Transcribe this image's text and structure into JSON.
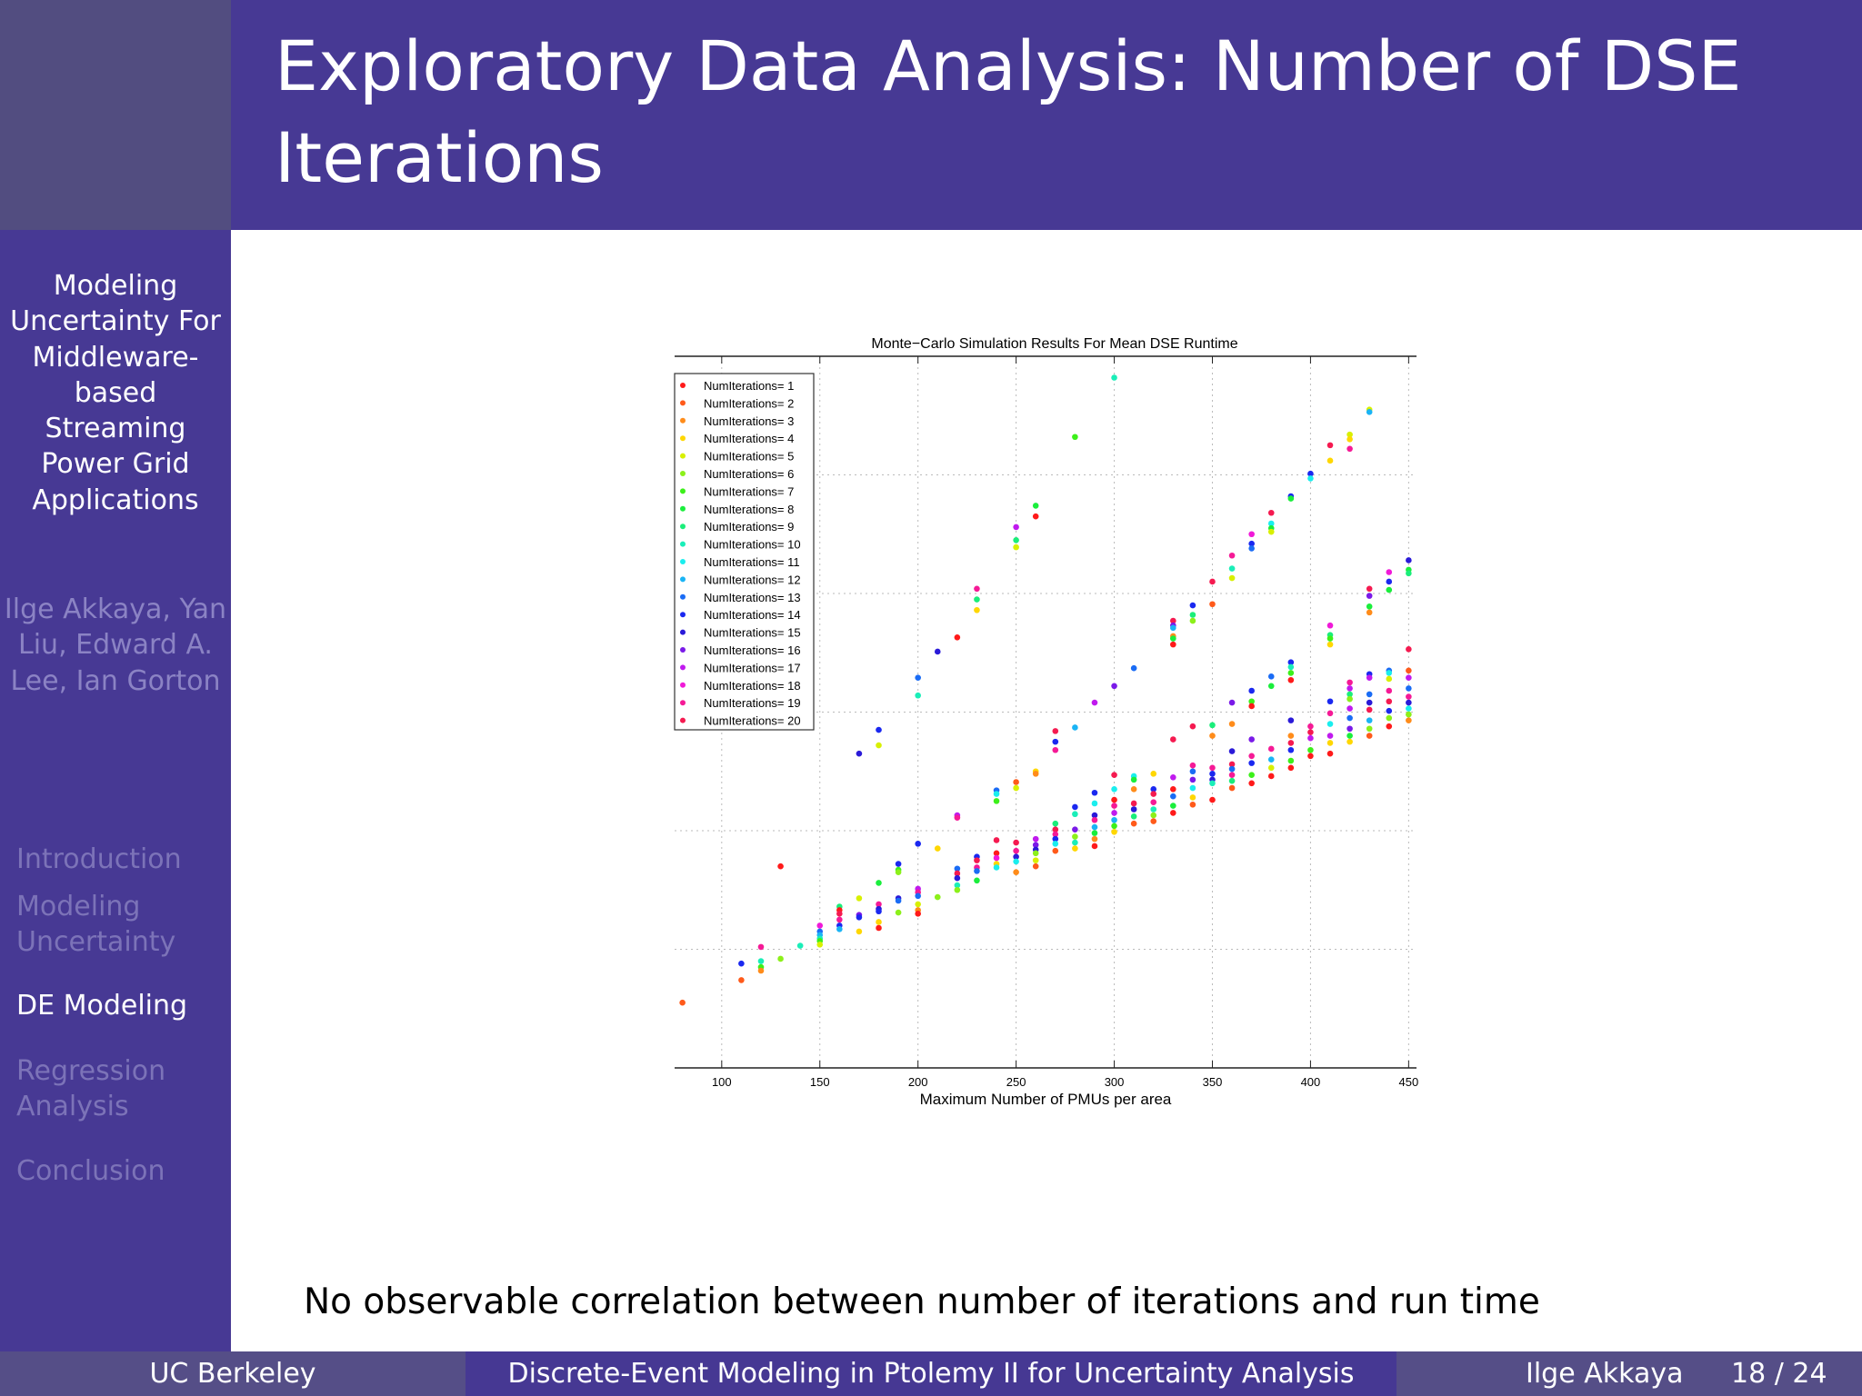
{
  "slide": {
    "title": "Exploratory Data Analysis: Number of DSE Iterations",
    "caption": "No observable correlation between number of iterations and run time"
  },
  "sidebar": {
    "talk_title": "Modeling Uncertainty For Middleware-based Streaming Power Grid Applications",
    "authors": "Ilge Akkaya, Yan Liu, Edward A. Lee, Ian Gorton",
    "sections": [
      {
        "label": "Introduction",
        "active": false
      },
      {
        "label": "Modeling Uncertainty",
        "active": false
      },
      {
        "label": "DE Modeling",
        "active": true
      },
      {
        "label": "Regression Analysis",
        "active": false
      },
      {
        "label": "Conclusion",
        "active": false
      }
    ]
  },
  "footer": {
    "institution": "UC Berkeley",
    "talk": "Discrete-Event Modeling in Ptolemy II for Uncertainty Analysis",
    "author": "Ilge Akkaya",
    "page": "18 / 24"
  },
  "colors": {
    "header": "#473994",
    "sidebar": "#473994",
    "footer_side": "#554e87"
  },
  "chart_data": {
    "type": "scatter",
    "title": "Monte−Carlo Simulation Results For Mean DSE Runtime",
    "xlabel": "Maximum Number of PMUs per area",
    "ylabel": "",
    "xlim": [
      76,
      454
    ],
    "ylim": [
      0,
      6
    ],
    "xticks": [
      100,
      150,
      200,
      250,
      300,
      350,
      400,
      450
    ],
    "yticks_shown": false,
    "grid": true,
    "legend_position": "top-left",
    "series": [
      {
        "name": "NumIterations= 1",
        "color": "#ff1a1a"
      },
      {
        "name": "NumIterations= 2",
        "color": "#ff5a1a"
      },
      {
        "name": "NumIterations= 3",
        "color": "#ff8c1a"
      },
      {
        "name": "NumIterations= 4",
        "color": "#ffd700"
      },
      {
        "name": "NumIterations= 5",
        "color": "#d8f000"
      },
      {
        "name": "NumIterations= 6",
        "color": "#8cf01a"
      },
      {
        "name": "NumIterations= 7",
        "color": "#3cf01a"
      },
      {
        "name": "NumIterations= 8",
        "color": "#1aee3c"
      },
      {
        "name": "NumIterations= 9",
        "color": "#1aee7a"
      },
      {
        "name": "NumIterations= 10",
        "color": "#1aeeb8"
      },
      {
        "name": "NumIterations= 11",
        "color": "#1aeeee"
      },
      {
        "name": "NumIterations= 12",
        "color": "#1ab4f5"
      },
      {
        "name": "NumIterations= 13",
        "color": "#1a6cf5"
      },
      {
        "name": "NumIterations= 14",
        "color": "#1a28f0"
      },
      {
        "name": "NumIterations= 15",
        "color": "#2a1ad8"
      },
      {
        "name": "NumIterations= 16",
        "color": "#7a1ae8"
      },
      {
        "name": "NumIterations= 17",
        "color": "#c01aee"
      },
      {
        "name": "NumIterations= 18",
        "color": "#f01ad8"
      },
      {
        "name": "NumIterations= 19",
        "color": "#f51a96"
      },
      {
        "name": "NumIterations= 20",
        "color": "#f51a50"
      }
    ],
    "points_format": "[x, y, NumIterations]",
    "points": [
      [
        80,
        0.55,
        2
      ],
      [
        110,
        0.74,
        2
      ],
      [
        110,
        0.88,
        14
      ],
      [
        120,
        1.02,
        19
      ],
      [
        120,
        0.9,
        10
      ],
      [
        120,
        0.85,
        7
      ],
      [
        120,
        0.82,
        3
      ],
      [
        130,
        1.7,
        1
      ],
      [
        130,
        0.92,
        6
      ],
      [
        140,
        1.03,
        10
      ],
      [
        150,
        1.2,
        18
      ],
      [
        150,
        1.15,
        13
      ],
      [
        150,
        1.12,
        12
      ],
      [
        150,
        1.09,
        10
      ],
      [
        150,
        1.07,
        7
      ],
      [
        150,
        1.04,
        5
      ],
      [
        160,
        1.36,
        9
      ],
      [
        160,
        1.33,
        1
      ],
      [
        160,
        1.3,
        20
      ],
      [
        160,
        1.25,
        19
      ],
      [
        160,
        1.2,
        14
      ],
      [
        160,
        1.17,
        12
      ],
      [
        170,
        2.65,
        15
      ],
      [
        170,
        1.43,
        5
      ],
      [
        170,
        1.29,
        16
      ],
      [
        170,
        1.27,
        14
      ],
      [
        170,
        1.15,
        4
      ],
      [
        180,
        2.85,
        14
      ],
      [
        180,
        2.72,
        5
      ],
      [
        180,
        1.56,
        8
      ],
      [
        180,
        1.38,
        19
      ],
      [
        180,
        1.34,
        15
      ],
      [
        180,
        1.32,
        14
      ],
      [
        180,
        1.23,
        4
      ],
      [
        180,
        1.18,
        1
      ],
      [
        190,
        1.72,
        14
      ],
      [
        190,
        1.67,
        7
      ],
      [
        190,
        1.65,
        6
      ],
      [
        190,
        1.43,
        15
      ],
      [
        190,
        1.41,
        13
      ],
      [
        190,
        1.31,
        6
      ],
      [
        200,
        3.29,
        13
      ],
      [
        200,
        3.14,
        10
      ],
      [
        200,
        1.89,
        14
      ],
      [
        200,
        1.51,
        17
      ],
      [
        200,
        1.48,
        19
      ],
      [
        200,
        1.45,
        13
      ],
      [
        200,
        1.38,
        5
      ],
      [
        200,
        1.33,
        3
      ],
      [
        200,
        1.3,
        1
      ],
      [
        210,
        3.51,
        15
      ],
      [
        210,
        1.85,
        4
      ],
      [
        210,
        1.44,
        6
      ],
      [
        220,
        3.63,
        1
      ],
      [
        220,
        2.13,
        17
      ],
      [
        220,
        2.11,
        19
      ],
      [
        220,
        1.68,
        13
      ],
      [
        220,
        1.64,
        20
      ],
      [
        220,
        1.6,
        15
      ],
      [
        220,
        1.54,
        10
      ],
      [
        220,
        1.5,
        6
      ],
      [
        230,
        4.04,
        19
      ],
      [
        230,
        3.95,
        9
      ],
      [
        230,
        3.86,
        4
      ],
      [
        230,
        1.78,
        14
      ],
      [
        230,
        1.75,
        20
      ],
      [
        230,
        1.69,
        19
      ],
      [
        230,
        1.66,
        13
      ],
      [
        230,
        1.58,
        8
      ],
      [
        240,
        2.34,
        13
      ],
      [
        240,
        2.31,
        11
      ],
      [
        240,
        2.25,
        7
      ],
      [
        240,
        1.92,
        20
      ],
      [
        240,
        1.81,
        1
      ],
      [
        240,
        1.77,
        18
      ],
      [
        240,
        1.72,
        4
      ],
      [
        240,
        1.69,
        11
      ],
      [
        250,
        4.56,
        17
      ],
      [
        250,
        4.45,
        9
      ],
      [
        250,
        4.39,
        5
      ],
      [
        250,
        2.41,
        2
      ],
      [
        250,
        2.36,
        5
      ],
      [
        250,
        1.9,
        20
      ],
      [
        250,
        1.83,
        19
      ],
      [
        250,
        1.78,
        15
      ],
      [
        250,
        1.74,
        11
      ],
      [
        250,
        1.65,
        3
      ],
      [
        260,
        4.74,
        8
      ],
      [
        260,
        4.65,
        1
      ],
      [
        260,
        2.5,
        4
      ],
      [
        260,
        2.48,
        3
      ],
      [
        260,
        1.93,
        17
      ],
      [
        260,
        1.88,
        16
      ],
      [
        260,
        1.84,
        15
      ],
      [
        260,
        1.81,
        6
      ],
      [
        260,
        1.75,
        5
      ],
      [
        260,
        1.7,
        2
      ],
      [
        270,
        2.84,
        20
      ],
      [
        270,
        2.75,
        14
      ],
      [
        270,
        2.68,
        19
      ],
      [
        270,
        2.06,
        9
      ],
      [
        270,
        2.01,
        20
      ],
      [
        270,
        1.97,
        19
      ],
      [
        270,
        1.93,
        14
      ],
      [
        270,
        1.89,
        11
      ],
      [
        270,
        1.83,
        2
      ],
      [
        280,
        5.32,
        7
      ],
      [
        280,
        2.87,
        12
      ],
      [
        280,
        2.2,
        14
      ],
      [
        280,
        2.14,
        10
      ],
      [
        280,
        2.01,
        16
      ],
      [
        280,
        1.95,
        6
      ],
      [
        280,
        1.9,
        10
      ],
      [
        280,
        1.85,
        4
      ],
      [
        290,
        3.08,
        17
      ],
      [
        290,
        2.32,
        14
      ],
      [
        290,
        2.23,
        11
      ],
      [
        290,
        2.13,
        15
      ],
      [
        290,
        2.09,
        19
      ],
      [
        290,
        2.03,
        12
      ],
      [
        290,
        1.98,
        8
      ],
      [
        290,
        1.93,
        3
      ],
      [
        290,
        1.87,
        1
      ],
      [
        300,
        5.82,
        10
      ],
      [
        300,
        3.22,
        16
      ],
      [
        300,
        2.47,
        20
      ],
      [
        300,
        2.35,
        11
      ],
      [
        300,
        2.26,
        1
      ],
      [
        300,
        2.21,
        19
      ],
      [
        300,
        2.15,
        17
      ],
      [
        300,
        2.09,
        12
      ],
      [
        300,
        2.04,
        7
      ],
      [
        300,
        1.99,
        4
      ],
      [
        310,
        3.37,
        13
      ],
      [
        310,
        2.46,
        11
      ],
      [
        310,
        2.43,
        8
      ],
      [
        310,
        2.35,
        3
      ],
      [
        310,
        2.23,
        20
      ],
      [
        310,
        2.18,
        15
      ],
      [
        310,
        2.12,
        9
      ],
      [
        310,
        2.06,
        2
      ],
      [
        320,
        2.48,
        4
      ],
      [
        320,
        2.35,
        14
      ],
      [
        320,
        2.31,
        20
      ],
      [
        320,
        2.24,
        19
      ],
      [
        320,
        2.18,
        10
      ],
      [
        320,
        2.13,
        6
      ],
      [
        320,
        2.08,
        2
      ],
      [
        330,
        3.77,
        20
      ],
      [
        330,
        3.73,
        16
      ],
      [
        330,
        3.71,
        12
      ],
      [
        330,
        3.64,
        3
      ],
      [
        330,
        3.62,
        8
      ],
      [
        330,
        3.57,
        1
      ],
      [
        330,
        2.77,
        20
      ],
      [
        330,
        2.45,
        17
      ],
      [
        330,
        2.35,
        1
      ],
      [
        330,
        2.29,
        13
      ],
      [
        330,
        2.21,
        8
      ],
      [
        330,
        2.15,
        1
      ],
      [
        340,
        3.9,
        14
      ],
      [
        340,
        3.82,
        9
      ],
      [
        340,
        3.77,
        6
      ],
      [
        340,
        2.88,
        20
      ],
      [
        340,
        2.55,
        19
      ],
      [
        340,
        2.5,
        13
      ],
      [
        340,
        2.43,
        16
      ],
      [
        340,
        2.36,
        11
      ],
      [
        340,
        2.28,
        4
      ],
      [
        340,
        2.22,
        2
      ],
      [
        350,
        4.1,
        20
      ],
      [
        350,
        3.91,
        2
      ],
      [
        350,
        2.89,
        9
      ],
      [
        350,
        2.8,
        3
      ],
      [
        350,
        2.53,
        19
      ],
      [
        350,
        2.48,
        14
      ],
      [
        350,
        2.43,
        15
      ],
      [
        350,
        2.4,
        10
      ],
      [
        350,
        2.26,
        1
      ],
      [
        360,
        4.32,
        19
      ],
      [
        360,
        4.21,
        10
      ],
      [
        360,
        4.13,
        5
      ],
      [
        360,
        3.08,
        16
      ],
      [
        360,
        2.9,
        3
      ],
      [
        360,
        2.67,
        15
      ],
      [
        360,
        2.56,
        20
      ],
      [
        360,
        2.52,
        13
      ],
      [
        360,
        2.47,
        19
      ],
      [
        360,
        2.42,
        9
      ],
      [
        360,
        2.36,
        2
      ],
      [
        370,
        4.5,
        18
      ],
      [
        370,
        4.42,
        14
      ],
      [
        370,
        4.38,
        13
      ],
      [
        370,
        3.18,
        14
      ],
      [
        370,
        3.09,
        7
      ],
      [
        370,
        3.05,
        1
      ],
      [
        370,
        2.77,
        16
      ],
      [
        370,
        2.63,
        19
      ],
      [
        370,
        2.57,
        14
      ],
      [
        370,
        2.47,
        7
      ],
      [
        370,
        2.4,
        1
      ],
      [
        380,
        4.68,
        20
      ],
      [
        380,
        4.59,
        11
      ],
      [
        380,
        4.55,
        8
      ],
      [
        380,
        4.52,
        5
      ],
      [
        380,
        3.3,
        13
      ],
      [
        380,
        3.22,
        8
      ],
      [
        380,
        2.69,
        19
      ],
      [
        380,
        2.6,
        12
      ],
      [
        380,
        2.53,
        5
      ],
      [
        380,
        2.46,
        1
      ],
      [
        390,
        4.82,
        14
      ],
      [
        390,
        4.8,
        8
      ],
      [
        390,
        3.42,
        14
      ],
      [
        390,
        3.38,
        10
      ],
      [
        390,
        3.33,
        7
      ],
      [
        390,
        3.27,
        1
      ],
      [
        390,
        2.93,
        15
      ],
      [
        390,
        2.8,
        3
      ],
      [
        390,
        2.74,
        20
      ],
      [
        390,
        2.68,
        14
      ],
      [
        390,
        2.59,
        7
      ],
      [
        390,
        2.53,
        1
      ],
      [
        400,
        5.01,
        14
      ],
      [
        400,
        4.97,
        11
      ],
      [
        400,
        2.88,
        19
      ],
      [
        400,
        2.83,
        20
      ],
      [
        400,
        2.78,
        17
      ],
      [
        400,
        2.68,
        7
      ],
      [
        400,
        2.63,
        1
      ],
      [
        410,
        5.25,
        20
      ],
      [
        410,
        5.12,
        4
      ],
      [
        410,
        3.73,
        18
      ],
      [
        410,
        3.65,
        9
      ],
      [
        410,
        3.62,
        7
      ],
      [
        410,
        3.57,
        4
      ],
      [
        410,
        3.09,
        14
      ],
      [
        410,
        2.99,
        19
      ],
      [
        410,
        2.9,
        11
      ],
      [
        410,
        2.8,
        17
      ],
      [
        410,
        2.74,
        4
      ],
      [
        410,
        2.65,
        1
      ],
      [
        420,
        5.34,
        5
      ],
      [
        420,
        5.3,
        4
      ],
      [
        420,
        5.22,
        19
      ],
      [
        420,
        3.25,
        19
      ],
      [
        420,
        3.2,
        17
      ],
      [
        420,
        3.15,
        9
      ],
      [
        420,
        3.11,
        6
      ],
      [
        420,
        3.03,
        17
      ],
      [
        420,
        2.95,
        13
      ],
      [
        420,
        2.86,
        16
      ],
      [
        420,
        2.8,
        8
      ],
      [
        420,
        2.75,
        4
      ],
      [
        430,
        5.55,
        5
      ],
      [
        430,
        5.53,
        12
      ],
      [
        430,
        4.04,
        20
      ],
      [
        430,
        3.98,
        16
      ],
      [
        430,
        3.89,
        8
      ],
      [
        430,
        3.84,
        3
      ],
      [
        430,
        3.32,
        14
      ],
      [
        430,
        3.29,
        17
      ],
      [
        430,
        3.15,
        13
      ],
      [
        430,
        3.08,
        15
      ],
      [
        430,
        3.02,
        20
      ],
      [
        430,
        2.93,
        12
      ],
      [
        430,
        2.86,
        6
      ],
      [
        430,
        2.8,
        2
      ],
      [
        440,
        4.18,
        18
      ],
      [
        440,
        4.1,
        14
      ],
      [
        440,
        4.03,
        8
      ],
      [
        440,
        3.35,
        13
      ],
      [
        440,
        3.33,
        11
      ],
      [
        440,
        3.28,
        5
      ],
      [
        440,
        3.18,
        19
      ],
      [
        440,
        3.09,
        20
      ],
      [
        440,
        3.01,
        14
      ],
      [
        440,
        2.95,
        6
      ],
      [
        440,
        2.88,
        1
      ],
      [
        450,
        4.28,
        15
      ],
      [
        450,
        4.2,
        8
      ],
      [
        450,
        4.17,
        9
      ],
      [
        450,
        3.53,
        20
      ],
      [
        450,
        3.35,
        2
      ],
      [
        450,
        3.29,
        17
      ],
      [
        450,
        3.2,
        13
      ],
      [
        450,
        3.13,
        19
      ],
      [
        450,
        3.08,
        15
      ],
      [
        450,
        3.03,
        11
      ],
      [
        450,
        2.98,
        6
      ],
      [
        450,
        2.93,
        3
      ]
    ]
  }
}
